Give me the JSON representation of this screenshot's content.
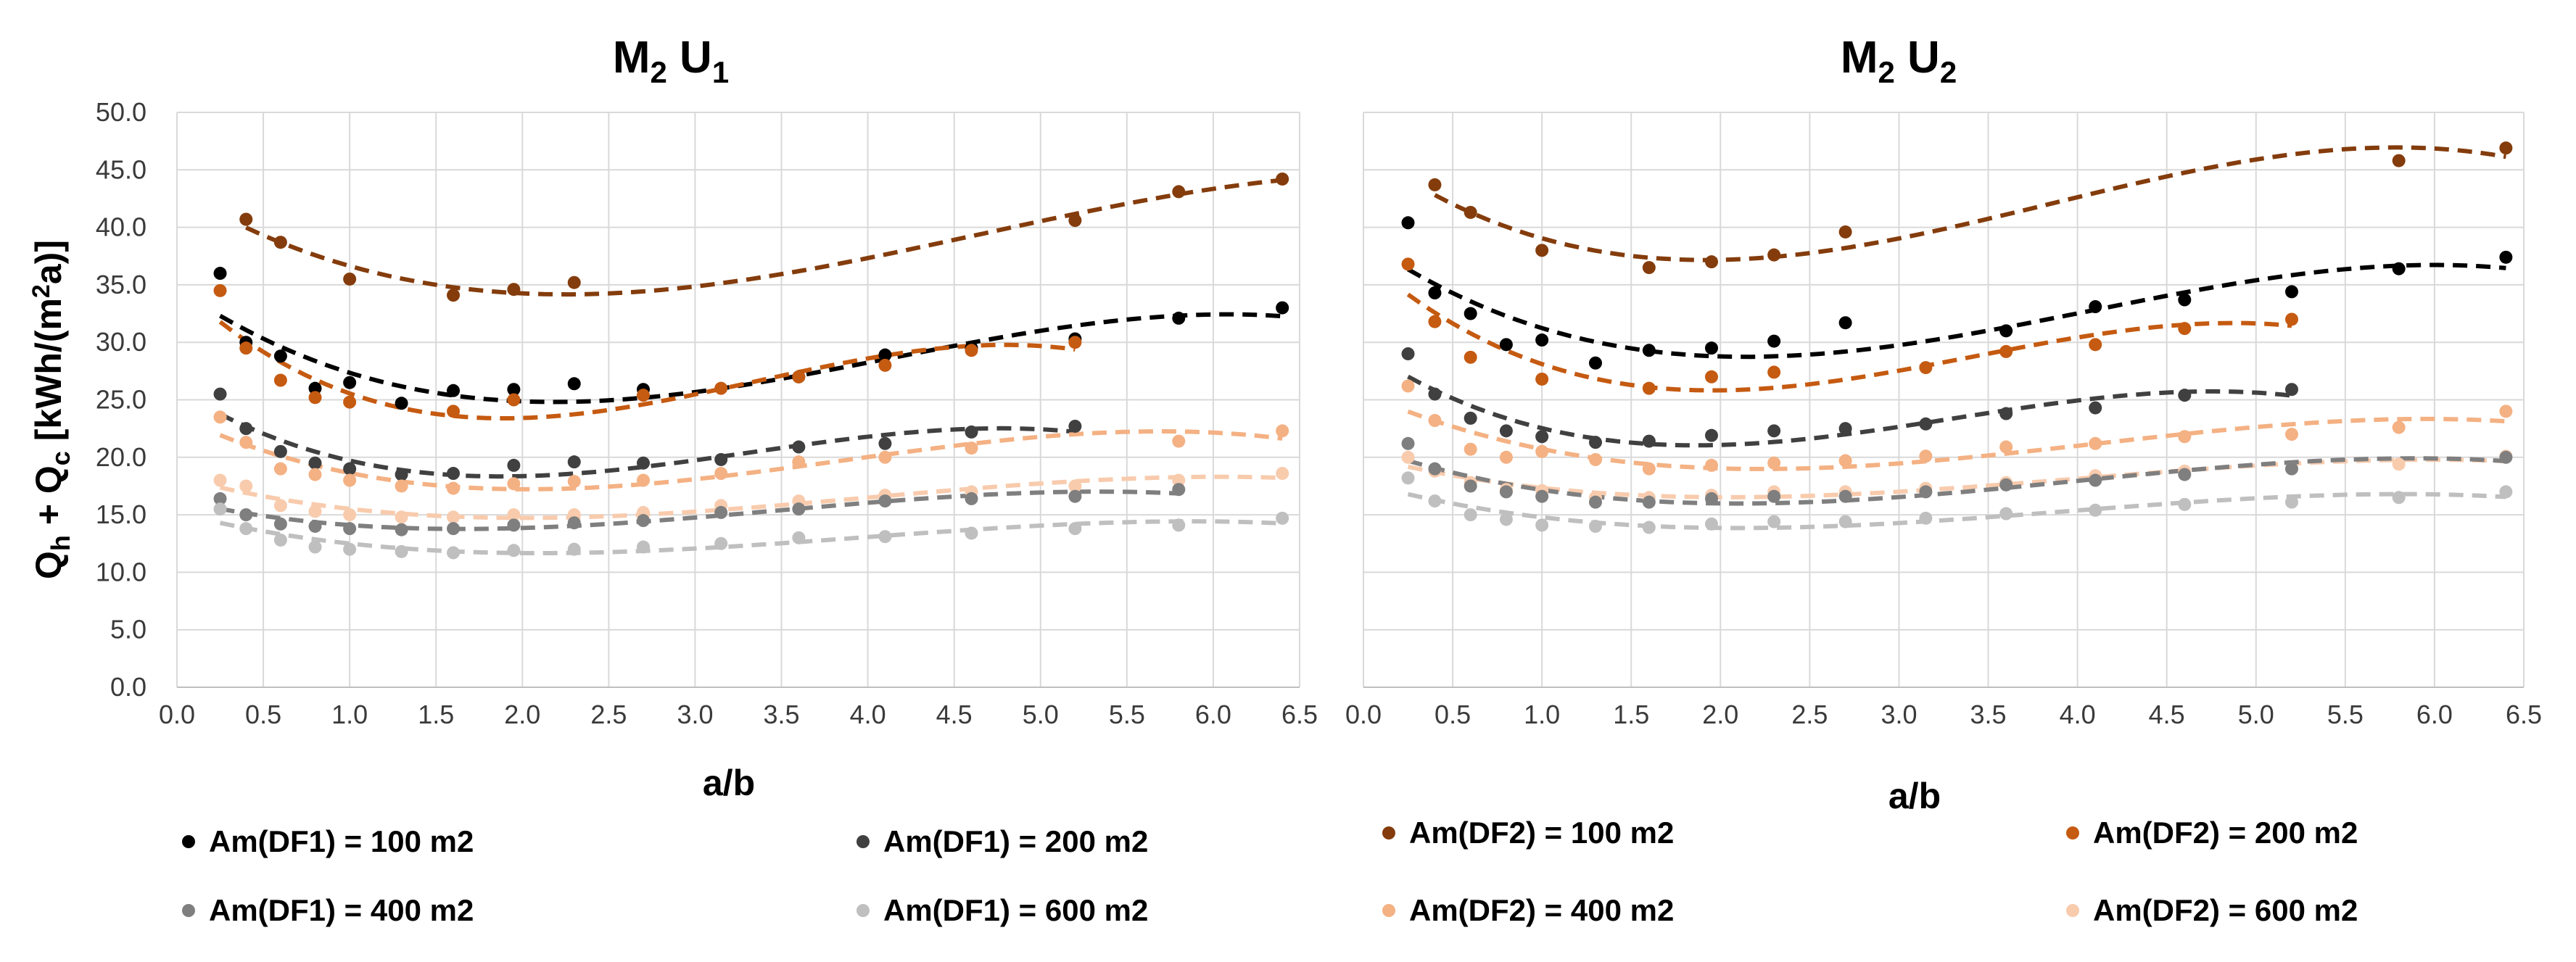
{
  "colors": {
    "DF1_100": "#000000",
    "DF1_200": "#404040",
    "DF1_400": "#7f7f7f",
    "DF1_600": "#bfbfbf",
    "DF2_100": "#843c0c",
    "DF2_200": "#c55a11",
    "DF2_400": "#f4b183",
    "DF2_600": "#f8cbad"
  },
  "y_axis_label": "Q_h + Q_c [kWh/(m²a)]",
  "legend_left": [
    "Am(DF1) = 100 m2",
    "Am(DF1) = 200 m2",
    "Am(DF1) = 400 m2",
    "Am(DF1) = 600 m2"
  ],
  "legend_right": [
    "Am(DF2) = 100 m2",
    "Am(DF2) = 200 m2",
    "Am(DF2) = 400 m2",
    "Am(DF2) = 600 m2"
  ],
  "chart_data": [
    {
      "type": "scatter",
      "title": "M2 U1",
      "xlabel": "a/b",
      "ylabel": "Qh + Qc [kWh/(m2a)]",
      "xlim": [
        0,
        6.5
      ],
      "ylim": [
        0,
        50
      ],
      "x_ticks": [
        "0.0",
        "0.5",
        "1.0",
        "1.5",
        "2.0",
        "2.5",
        "3.0",
        "3.5",
        "4.0",
        "4.5",
        "5.0",
        "5.5",
        "6.0",
        "6.5"
      ],
      "y_ticks": [
        "0.0",
        "5.0",
        "10.0",
        "15.0",
        "20.0",
        "25.0",
        "30.0",
        "35.0",
        "40.0",
        "45.0",
        "50.0"
      ],
      "trendline": "polynomial, dashed",
      "series": [
        {
          "name": "Am(DF2) = 100 m2",
          "color_key": "DF2_100",
          "x": [
            0.4,
            0.6,
            1.0,
            1.6,
            1.95,
            2.3,
            5.2,
            5.8,
            6.4
          ],
          "y": [
            40.7,
            38.7,
            35.5,
            34.1,
            34.6,
            35.2,
            40.6,
            43.1,
            44.2
          ]
        },
        {
          "name": "Am(DF1) = 100 m2",
          "color_key": "DF1_100",
          "x": [
            0.25,
            0.4,
            0.6,
            0.8,
            1.0,
            1.3,
            1.6,
            1.95,
            2.3,
            2.7,
            3.6,
            4.1,
            4.6,
            5.2,
            5.8,
            6.4
          ],
          "y": [
            36.0,
            30.0,
            28.8,
            26.0,
            26.5,
            24.7,
            25.8,
            25.9,
            26.4,
            25.9,
            27.0,
            28.9,
            29.5,
            30.3,
            32.1,
            33.0
          ]
        },
        {
          "name": "Am(DF2) = 200 m2",
          "color_key": "DF2_200",
          "x": [
            0.25,
            0.4,
            0.6,
            0.8,
            1.0,
            1.6,
            1.95,
            2.7,
            3.15,
            3.6,
            4.1,
            4.6,
            5.2
          ],
          "y": [
            34.5,
            29.5,
            26.7,
            25.2,
            24.8,
            24.0,
            25.0,
            25.4,
            26.0,
            27.0,
            28.0,
            29.3,
            30.0
          ]
        },
        {
          "name": "Am(DF1) = 200 m2",
          "color_key": "DF1_200",
          "x": [
            0.25,
            0.4,
            0.6,
            0.8,
            1.0,
            1.3,
            1.6,
            1.95,
            2.3,
            2.7,
            3.15,
            3.6,
            4.1,
            4.6,
            5.2
          ],
          "y": [
            25.5,
            22.5,
            20.5,
            19.5,
            19.0,
            18.5,
            18.6,
            19.3,
            19.6,
            19.5,
            19.8,
            20.9,
            21.2,
            22.2,
            22.7
          ]
        },
        {
          "name": "Am(DF2) = 400 m2",
          "color_key": "DF2_400",
          "x": [
            0.25,
            0.4,
            0.6,
            0.8,
            1.0,
            1.3,
            1.6,
            1.95,
            2.3,
            2.7,
            3.15,
            3.6,
            4.1,
            4.6,
            5.8,
            6.4
          ],
          "y": [
            23.5,
            21.3,
            19.0,
            18.5,
            18.0,
            17.5,
            17.3,
            17.7,
            17.9,
            18.0,
            18.6,
            19.6,
            20.0,
            20.8,
            21.4,
            22.3
          ]
        },
        {
          "name": "Am(DF2) = 600 m2",
          "color_key": "DF2_600",
          "x": [
            0.25,
            0.4,
            0.6,
            0.8,
            1.0,
            1.3,
            1.6,
            1.95,
            2.3,
            2.7,
            3.15,
            3.6,
            4.1,
            4.6,
            5.2,
            5.8,
            6.4
          ],
          "y": [
            18.0,
            17.5,
            15.8,
            15.3,
            15.0,
            14.8,
            14.8,
            15.0,
            15.0,
            15.2,
            15.8,
            16.2,
            16.7,
            17.0,
            17.5,
            18.0,
            18.6
          ]
        },
        {
          "name": "Am(DF1) = 400 m2",
          "color_key": "DF1_400",
          "x": [
            0.25,
            0.4,
            0.6,
            0.8,
            1.0,
            1.3,
            1.6,
            1.95,
            2.3,
            2.7,
            3.15,
            3.6,
            4.1,
            4.6,
            5.2,
            5.8
          ],
          "y": [
            16.4,
            15.0,
            14.2,
            14.0,
            13.8,
            13.7,
            13.8,
            14.1,
            14.3,
            14.5,
            15.2,
            15.5,
            16.2,
            16.4,
            16.6,
            17.2
          ]
        },
        {
          "name": "Am(DF1) = 600 m2",
          "color_key": "DF1_600",
          "x": [
            0.25,
            0.4,
            0.6,
            0.8,
            1.0,
            1.3,
            1.6,
            1.95,
            2.3,
            2.7,
            3.15,
            3.6,
            4.1,
            4.6,
            5.2,
            5.8,
            6.4
          ],
          "y": [
            15.5,
            13.8,
            12.8,
            12.2,
            12.0,
            11.8,
            11.7,
            11.9,
            12.0,
            12.2,
            12.5,
            13.0,
            13.1,
            13.4,
            13.8,
            14.1,
            14.7
          ]
        }
      ]
    },
    {
      "type": "scatter",
      "title": "M2 U2",
      "xlabel": "a/b",
      "ylabel": "",
      "xlim": [
        0,
        6.5
      ],
      "ylim": [
        0,
        50
      ],
      "x_ticks": [
        "0.0",
        "0.5",
        "1.0",
        "1.5",
        "2.0",
        "2.5",
        "3.0",
        "3.5",
        "4.0",
        "4.5",
        "5.0",
        "5.5",
        "6.0",
        "6.5"
      ],
      "y_ticks": [],
      "trendline": "polynomial, dashed",
      "series": [
        {
          "name": "Am(DF2) = 100 m2",
          "color_key": "DF2_100",
          "x": [
            0.4,
            0.6,
            1.0,
            1.6,
            1.95,
            2.3,
            2.7,
            5.8,
            6.4
          ],
          "y": [
            43.7,
            41.3,
            38.0,
            36.5,
            37.0,
            37.6,
            39.6,
            45.8,
            46.9
          ]
        },
        {
          "name": "Am(DF1) = 100 m2",
          "color_key": "DF1_100",
          "x": [
            0.25,
            0.4,
            0.6,
            0.8,
            1.0,
            1.3,
            1.6,
            1.95,
            2.3,
            2.7,
            3.6,
            4.1,
            4.6,
            5.2,
            5.8,
            6.4
          ],
          "y": [
            40.4,
            34.3,
            32.5,
            29.8,
            30.2,
            28.2,
            29.3,
            29.5,
            30.1,
            31.7,
            31.0,
            33.1,
            33.7,
            34.4,
            36.4,
            37.4
          ]
        },
        {
          "name": "Am(DF2) = 200 m2",
          "color_key": "DF2_200",
          "x": [
            0.25,
            0.4,
            0.6,
            1.0,
            1.6,
            1.95,
            2.3,
            3.15,
            3.6,
            4.1,
            4.6,
            5.2
          ],
          "y": [
            36.8,
            31.8,
            28.7,
            26.8,
            26.0,
            27.0,
            27.4,
            27.8,
            29.2,
            29.8,
            31.2,
            32.0
          ]
        },
        {
          "name": "Am(DF1) = 200 m2",
          "color_key": "DF1_200",
          "x": [
            0.25,
            0.4,
            0.6,
            0.8,
            1.0,
            1.3,
            1.6,
            1.95,
            2.3,
            2.7,
            3.15,
            3.6,
            4.1,
            4.6,
            5.2
          ],
          "y": [
            29.0,
            25.5,
            23.4,
            22.3,
            21.8,
            21.3,
            21.4,
            21.9,
            22.3,
            22.5,
            22.9,
            23.8,
            24.3,
            25.4,
            25.9
          ]
        },
        {
          "name": "Am(DF2) = 400 m2",
          "color_key": "DF2_400",
          "x": [
            0.25,
            0.4,
            0.6,
            0.8,
            1.0,
            1.3,
            1.6,
            1.95,
            2.3,
            2.7,
            3.15,
            3.6,
            4.1,
            4.6,
            5.2,
            5.8,
            6.4
          ],
          "y": [
            26.2,
            23.2,
            20.7,
            20.0,
            20.5,
            19.8,
            19.0,
            19.3,
            19.5,
            19.7,
            20.1,
            20.9,
            21.2,
            21.8,
            22.0,
            22.6,
            24.0
          ]
        },
        {
          "name": "Am(DF2) = 600 m2",
          "color_key": "DF2_600",
          "x": [
            0.25,
            0.4,
            0.6,
            0.8,
            1.0,
            1.3,
            1.6,
            1.95,
            2.3,
            2.7,
            3.15,
            3.6,
            4.1,
            4.6,
            5.2,
            5.8,
            6.4
          ],
          "y": [
            20.0,
            18.8,
            17.8,
            17.2,
            17.1,
            16.5,
            16.5,
            16.7,
            17.0,
            17.0,
            17.3,
            17.8,
            18.4,
            18.8,
            19.0,
            19.4,
            20.1
          ]
        },
        {
          "name": "Am(DF1) = 400 m2",
          "color_key": "DF1_400",
          "x": [
            0.25,
            0.4,
            0.6,
            0.8,
            1.0,
            1.3,
            1.6,
            1.95,
            2.3,
            2.7,
            3.15,
            3.6,
            4.1,
            4.6,
            5.2,
            6.4
          ],
          "y": [
            21.2,
            19.0,
            17.5,
            17.0,
            16.6,
            16.1,
            16.1,
            16.4,
            16.6,
            16.6,
            17.0,
            17.6,
            18.0,
            18.5,
            19.0,
            20.0
          ]
        },
        {
          "name": "Am(DF1) = 600 m2",
          "color_key": "DF1_600",
          "x": [
            0.25,
            0.4,
            0.6,
            0.8,
            1.0,
            1.3,
            1.6,
            1.95,
            2.3,
            2.7,
            3.15,
            3.6,
            4.1,
            4.6,
            5.2,
            5.8,
            6.4
          ],
          "y": [
            18.2,
            16.2,
            15.0,
            14.6,
            14.1,
            14.0,
            13.9,
            14.2,
            14.4,
            14.4,
            14.7,
            15.1,
            15.4,
            15.9,
            16.1,
            16.5,
            17.0
          ]
        }
      ]
    }
  ]
}
